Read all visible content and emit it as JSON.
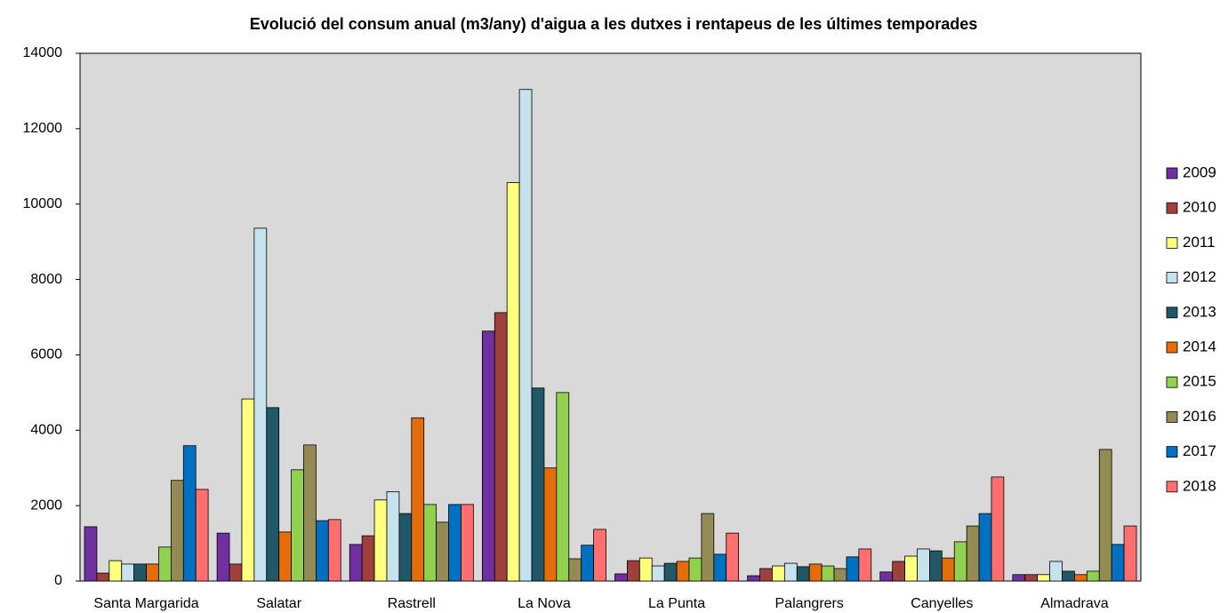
{
  "chart_data": {
    "type": "bar",
    "title": "Evolució del consum anual (m3/any) d'aigua a les dutxes i rentapeus de les últimes temporades",
    "categories": [
      "Santa Margarida",
      "Salatar",
      "Rastrell",
      "La Nova",
      "La Punta",
      "Palangrers",
      "Canyelles",
      "Almadrava"
    ],
    "series": [
      {
        "name": "2009",
        "color": "#7030a0",
        "values": [
          1440,
          1270,
          970,
          6630,
          190,
          140,
          240,
          170
        ]
      },
      {
        "name": "2010",
        "color": "#a0403c",
        "values": [
          210,
          450,
          1200,
          7120,
          540,
          330,
          520,
          170
        ]
      },
      {
        "name": "2011",
        "color": "#ffff80",
        "values": [
          540,
          4830,
          2150,
          10570,
          610,
          400,
          660,
          170
        ]
      },
      {
        "name": "2012",
        "color": "#c6e2ec",
        "values": [
          450,
          9360,
          2370,
          13040,
          400,
          470,
          850,
          520
        ]
      },
      {
        "name": "2013",
        "color": "#215868",
        "values": [
          450,
          4600,
          1790,
          5120,
          470,
          380,
          800,
          260
        ]
      },
      {
        "name": "2014",
        "color": "#e46c0a",
        "values": [
          450,
          1300,
          4330,
          3000,
          520,
          450,
          610,
          170
        ]
      },
      {
        "name": "2015",
        "color": "#92d050",
        "values": [
          900,
          2950,
          2030,
          5000,
          610,
          400,
          1040,
          260
        ]
      },
      {
        "name": "2016",
        "color": "#948a54",
        "values": [
          2670,
          3610,
          1560,
          590,
          1790,
          330,
          1460,
          3490
        ]
      },
      {
        "name": "2017",
        "color": "#0070c0",
        "values": [
          3590,
          1600,
          2030,
          950,
          710,
          640,
          1790,
          970
        ]
      },
      {
        "name": "2018",
        "color": "#ff6f6f",
        "values": [
          2430,
          1630,
          2030,
          1370,
          1270,
          850,
          2760,
          1460
        ]
      }
    ],
    "ylim": [
      0,
      14000
    ],
    "yticks": [
      0,
      2000,
      4000,
      6000,
      8000,
      10000,
      12000,
      14000
    ],
    "grid": false,
    "legend": "right"
  }
}
